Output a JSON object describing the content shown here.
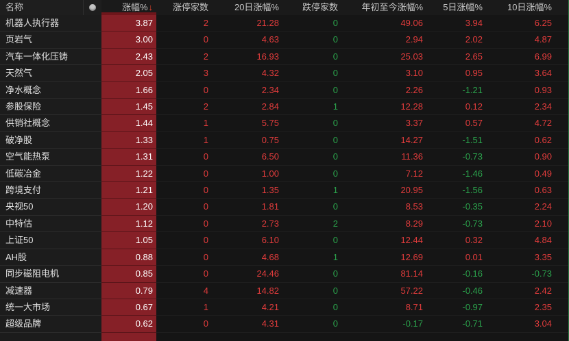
{
  "colors": {
    "up_text": "#e23c3c",
    "down_text": "#2ba24c",
    "chg_cell_bg": "#862027",
    "chg_cell_text": "#ffffff",
    "sort_arrow": "#e8432b",
    "right_edge_line": "#2d7d45",
    "header_text": "#c6c6c6"
  },
  "table": {
    "sort_arrow": "↓",
    "dot_icon": "circle-marker",
    "columns": [
      {
        "id": "name",
        "label": "名称"
      },
      {
        "id": "chg",
        "label": "涨幅%",
        "sorted": "desc"
      },
      {
        "id": "limit_up",
        "label": "涨停家数"
      },
      {
        "id": "d20",
        "label": "20日涨幅%"
      },
      {
        "id": "limit_down",
        "label": "跌停家数"
      },
      {
        "id": "ytd",
        "label": "年初至今涨幅%"
      },
      {
        "id": "d5",
        "label": "5日涨幅%"
      },
      {
        "id": "d10",
        "label": "10日涨幅%"
      }
    ],
    "rows": [
      {
        "name": "机器人执行器",
        "chg": "3.87",
        "limit_up": "2",
        "d20": "21.28",
        "limit_down": "0",
        "ytd": "49.06",
        "d5": "3.94",
        "d10": "6.25"
      },
      {
        "name": "页岩气",
        "chg": "3.00",
        "limit_up": "0",
        "d20": "4.63",
        "limit_down": "0",
        "ytd": "2.94",
        "d5": "2.02",
        "d10": "4.87"
      },
      {
        "name": "汽车一体化压铸",
        "chg": "2.43",
        "limit_up": "2",
        "d20": "16.93",
        "limit_down": "0",
        "ytd": "25.03",
        "d5": "2.65",
        "d10": "6.99"
      },
      {
        "name": "天然气",
        "chg": "2.05",
        "limit_up": "3",
        "d20": "4.32",
        "limit_down": "0",
        "ytd": "3.10",
        "d5": "0.95",
        "d10": "3.64"
      },
      {
        "name": "净水概念",
        "chg": "1.66",
        "limit_up": "0",
        "d20": "2.34",
        "limit_down": "0",
        "ytd": "2.26",
        "d5": "-1.21",
        "d10": "0.93"
      },
      {
        "name": "参股保险",
        "chg": "1.45",
        "limit_up": "2",
        "d20": "2.84",
        "limit_down": "1",
        "ytd": "12.28",
        "d5": "0.12",
        "d10": "2.34"
      },
      {
        "name": "供销社概念",
        "chg": "1.44",
        "limit_up": "1",
        "d20": "5.75",
        "limit_down": "0",
        "ytd": "3.37",
        "d5": "0.57",
        "d10": "4.72"
      },
      {
        "name": "破净股",
        "chg": "1.33",
        "limit_up": "1",
        "d20": "0.75",
        "limit_down": "0",
        "ytd": "14.27",
        "d5": "-1.51",
        "d10": "0.62"
      },
      {
        "name": "空气能热泵",
        "chg": "1.31",
        "limit_up": "0",
        "d20": "6.50",
        "limit_down": "0",
        "ytd": "11.36",
        "d5": "-0.73",
        "d10": "0.90"
      },
      {
        "name": "低碳冶金",
        "chg": "1.22",
        "limit_up": "0",
        "d20": "1.00",
        "limit_down": "0",
        "ytd": "7.12",
        "d5": "-1.46",
        "d10": "0.49"
      },
      {
        "name": "跨境支付",
        "chg": "1.21",
        "limit_up": "0",
        "d20": "1.35",
        "limit_down": "1",
        "ytd": "20.95",
        "d5": "-1.56",
        "d10": "0.63"
      },
      {
        "name": "央视50",
        "chg": "1.20",
        "limit_up": "0",
        "d20": "1.81",
        "limit_down": "0",
        "ytd": "8.53",
        "d5": "-0.35",
        "d10": "2.24"
      },
      {
        "name": "中特估",
        "chg": "1.12",
        "limit_up": "0",
        "d20": "2.73",
        "limit_down": "2",
        "ytd": "8.29",
        "d5": "-0.73",
        "d10": "2.10"
      },
      {
        "name": "上证50",
        "chg": "1.05",
        "limit_up": "0",
        "d20": "6.10",
        "limit_down": "0",
        "ytd": "12.44",
        "d5": "0.32",
        "d10": "4.84"
      },
      {
        "name": "AH股",
        "chg": "0.88",
        "limit_up": "0",
        "d20": "4.68",
        "limit_down": "1",
        "ytd": "12.69",
        "d5": "0.01",
        "d10": "3.35"
      },
      {
        "name": "同步磁阻电机",
        "chg": "0.85",
        "limit_up": "0",
        "d20": "24.46",
        "limit_down": "0",
        "ytd": "81.14",
        "d5": "-0.16",
        "d10": "-0.73"
      },
      {
        "name": "减速器",
        "chg": "0.79",
        "limit_up": "4",
        "d20": "14.82",
        "limit_down": "0",
        "ytd": "57.22",
        "d5": "-0.46",
        "d10": "2.42"
      },
      {
        "name": "统一大市场",
        "chg": "0.67",
        "limit_up": "1",
        "d20": "4.21",
        "limit_down": "0",
        "ytd": "8.71",
        "d5": "-0.97",
        "d10": "2.35"
      },
      {
        "name": "超级品牌",
        "chg": "0.62",
        "limit_up": "0",
        "d20": "4.31",
        "limit_down": "0",
        "ytd": "-0.17",
        "d5": "-0.71",
        "d10": "3.04"
      }
    ],
    "partial_row": true
  }
}
